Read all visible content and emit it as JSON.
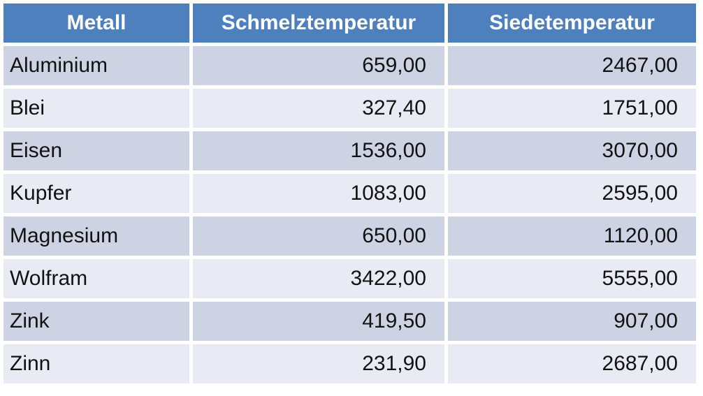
{
  "colors": {
    "page_bg": "#ffffff",
    "header_bg": "#4D80BD",
    "header_text": "#ffffff",
    "row_odd_bg": "#CDD3E3",
    "row_even_bg": "#E9EBF4",
    "cell_text": "#121212"
  },
  "table": {
    "columns": [
      "Metall",
      "Schmelztemperatur",
      "Siedetemperatur"
    ],
    "rows": [
      [
        "Aluminium",
        "659,00",
        "2467,00"
      ],
      [
        "Blei",
        "327,40",
        "1751,00"
      ],
      [
        "Eisen",
        "1536,00",
        "3070,00"
      ],
      [
        "Kupfer",
        "1083,00",
        "2595,00"
      ],
      [
        "Magnesium",
        "650,00",
        "1120,00"
      ],
      [
        "Wolfram",
        "3422,00",
        "5555,00"
      ],
      [
        "Zink",
        "419,50",
        "907,00"
      ],
      [
        "Zinn",
        "231,90",
        "2687,00"
      ]
    ]
  },
  "chart_data": {
    "type": "table",
    "categories": [
      "Aluminium",
      "Blei",
      "Eisen",
      "Kupfer",
      "Magnesium",
      "Wolfram",
      "Zink",
      "Zinn"
    ],
    "series": [
      {
        "name": "Schmelztemperatur",
        "values": [
          659.0,
          327.4,
          1536.0,
          1083.0,
          650.0,
          3422.0,
          419.5,
          231.9
        ]
      },
      {
        "name": "Siedetemperatur",
        "values": [
          2467.0,
          1751.0,
          3070.0,
          2595.0,
          1120.0,
          5555.0,
          907.0,
          2687.0
        ]
      }
    ],
    "layout_hints": {
      "header_row": true,
      "zebra_striping": true,
      "first_column_align": "left",
      "value_columns_align": "right",
      "decimal_separator": ","
    }
  }
}
